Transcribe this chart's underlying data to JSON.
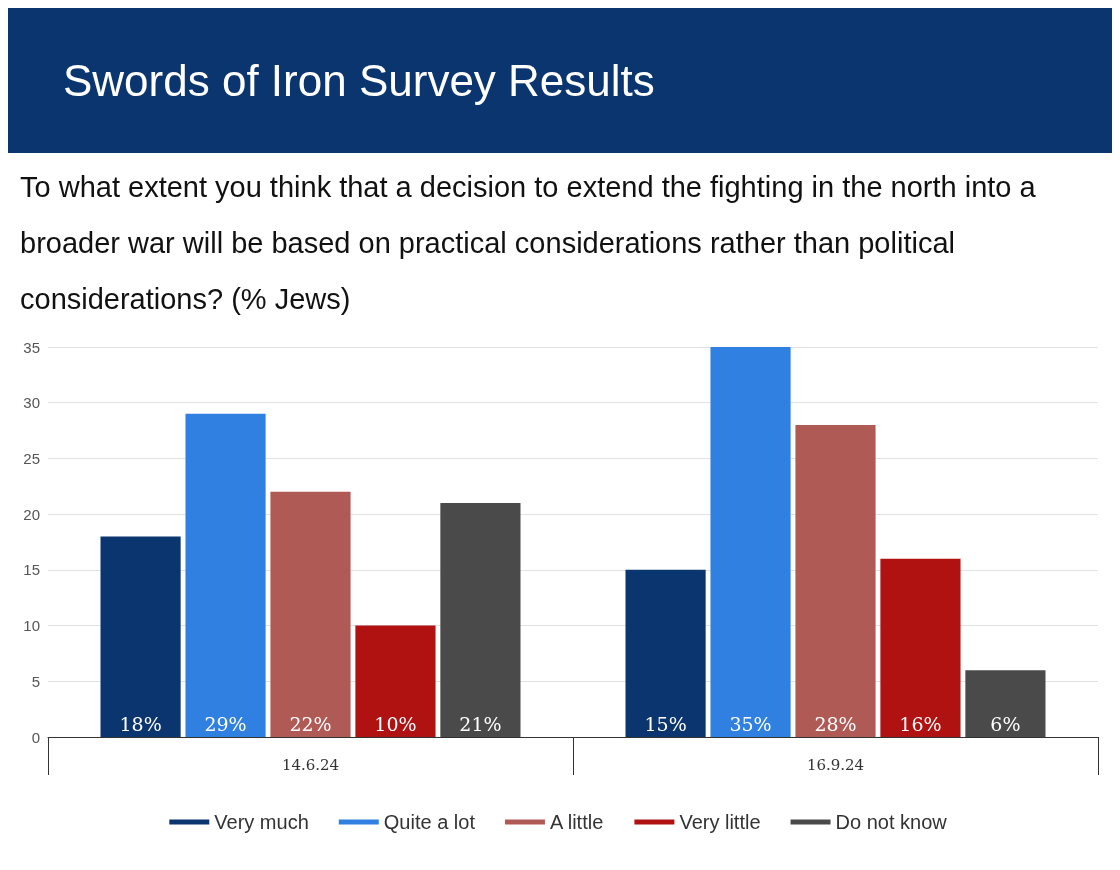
{
  "chart_data": {
    "type": "bar",
    "title": "Swords of Iron Survey Results",
    "subtitle": "To what extent you think that a decision to extend the fighting in the north into a broader war will be based on practical considerations rather than political considerations? (% Jews)",
    "categories": [
      "14.6.24",
      "16.9.24"
    ],
    "series": [
      {
        "name": "Very much",
        "color": "#0b356f",
        "values": [
          18,
          15
        ],
        "value_labels": [
          "18%",
          "15%"
        ]
      },
      {
        "name": "Quite a lot",
        "color": "#2f80e0",
        "values": [
          29,
          35
        ],
        "value_labels": [
          "29%",
          "35%"
        ]
      },
      {
        "name": "A little",
        "color": "#b05a56",
        "values": [
          22,
          28
        ],
        "value_labels": [
          "22%",
          "28%"
        ]
      },
      {
        "name": "Very little",
        "color": "#b01212",
        "values": [
          10,
          16
        ],
        "value_labels": [
          "10%",
          "16%"
        ]
      },
      {
        "name": "Do not know",
        "color": "#4a4a4a",
        "values": [
          21,
          6
        ],
        "value_labels": [
          "21%",
          "6%"
        ]
      }
    ],
    "ylim": [
      0,
      35
    ],
    "yticks": [
      0,
      5,
      10,
      15,
      20,
      25,
      30,
      35
    ],
    "grid": "y",
    "legend": "bottom"
  }
}
